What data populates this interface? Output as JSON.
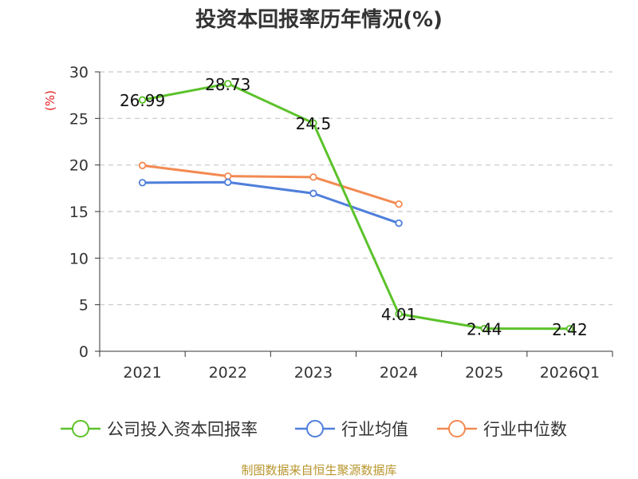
{
  "chart_data": {
    "type": "line",
    "title": "投资本回报率历年情况(%)",
    "ylabel": "(%)",
    "xlabel": "",
    "categories": [
      "2021",
      "2022",
      "2023",
      "2024",
      "2025",
      "2026Q1"
    ],
    "ylim": [
      0,
      30
    ],
    "yticks": [
      0,
      5,
      10,
      15,
      20,
      25,
      30
    ],
    "grid": true,
    "legend_position": "bottom",
    "series": [
      {
        "name": "公司投入资本回报率",
        "color": "#5cc22b",
        "values": [
          26.99,
          28.73,
          24.5,
          4.01,
          2.44,
          2.42
        ],
        "labels": [
          "26.99",
          "28.73",
          "24.5",
          "4.01",
          "2.44",
          "2.42"
        ]
      },
      {
        "name": "行业均值",
        "color": "#4f7fdb",
        "values": [
          18.1,
          18.15,
          16.95,
          13.75,
          null,
          null
        ]
      },
      {
        "name": "行业中位数",
        "color": "#f28a52",
        "values": [
          19.95,
          18.8,
          18.7,
          15.8,
          null,
          null
        ]
      }
    ]
  },
  "footer": "制图数据来自恒生聚源数据库"
}
